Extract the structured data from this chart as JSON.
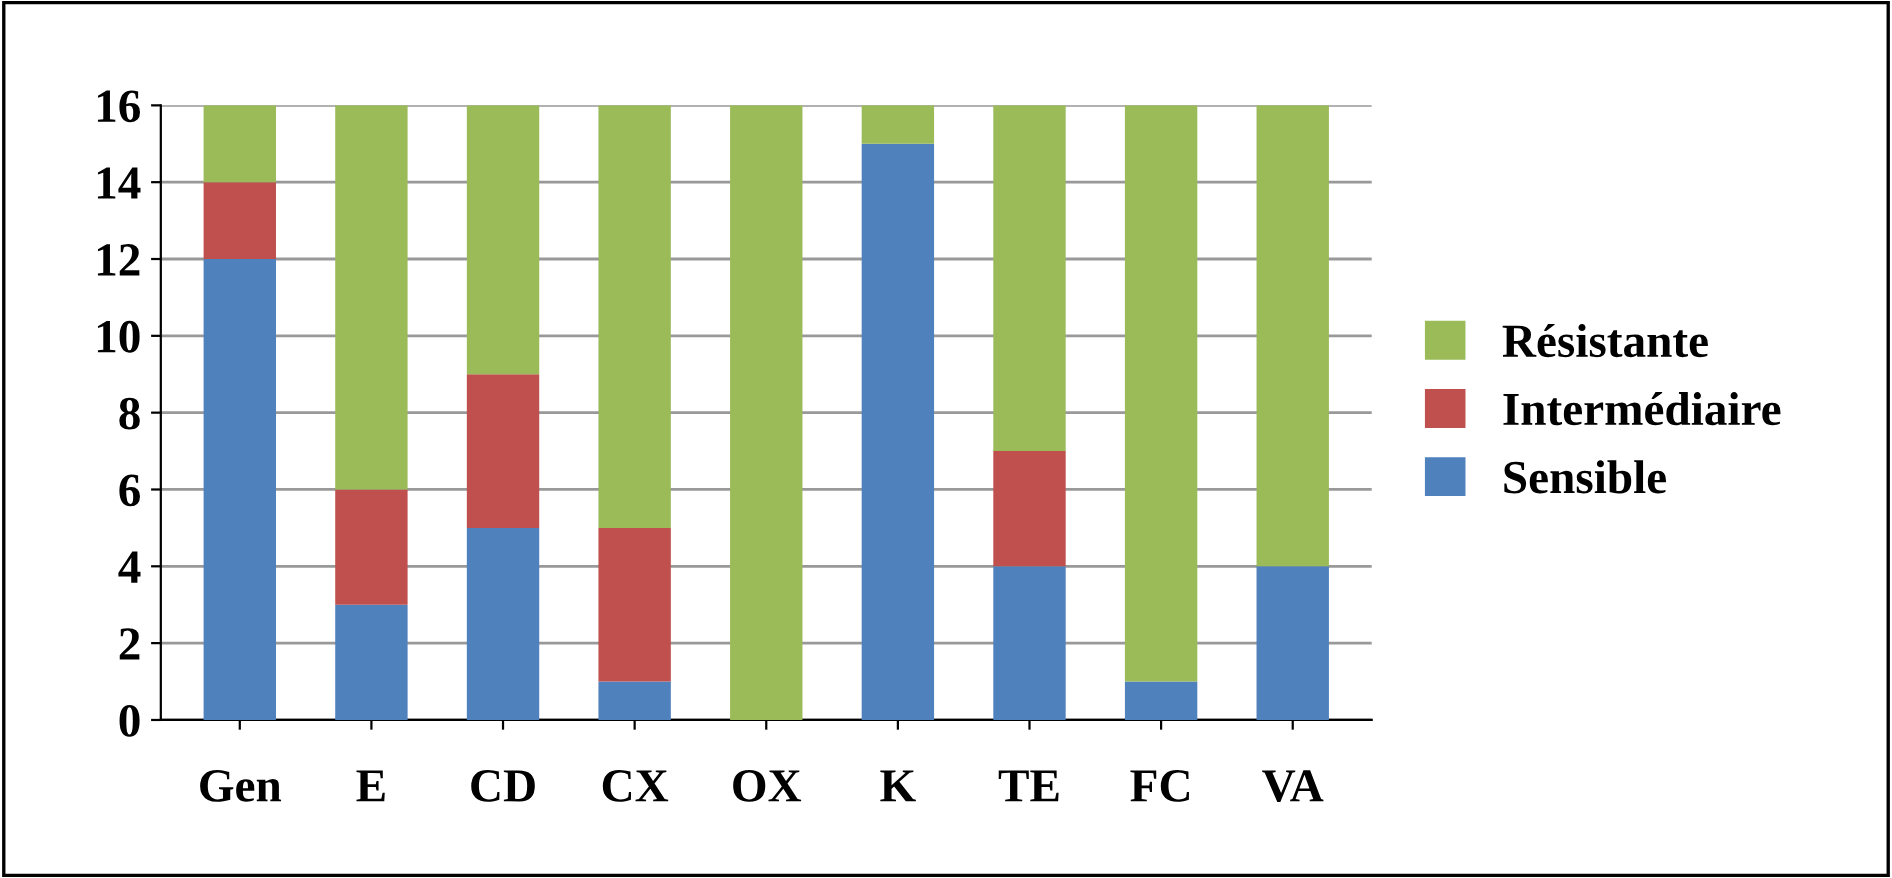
{
  "chart_data": {
    "type": "bar",
    "stacked": true,
    "categories": [
      "Gen",
      "E",
      "CD",
      "CX",
      "OX",
      "K",
      "TE",
      "FC",
      "VA"
    ],
    "series": [
      {
        "name": "Sensible",
        "color": "#4f81bd",
        "values": [
          12,
          3,
          5,
          1,
          0,
          15,
          4,
          1,
          4
        ]
      },
      {
        "name": "Intermédiaire",
        "color": "#c0504d",
        "values": [
          2,
          3,
          4,
          4,
          0,
          0,
          3,
          0,
          0
        ]
      },
      {
        "name": "Résistante",
        "color": "#9bbb59",
        "values": [
          2,
          10,
          7,
          11,
          16,
          1,
          9,
          15,
          12
        ]
      }
    ],
    "ylim": [
      0,
      16
    ],
    "yticks": [
      0,
      2,
      4,
      6,
      8,
      10,
      12,
      14,
      16
    ],
    "grid": "y",
    "legend": "right"
  }
}
